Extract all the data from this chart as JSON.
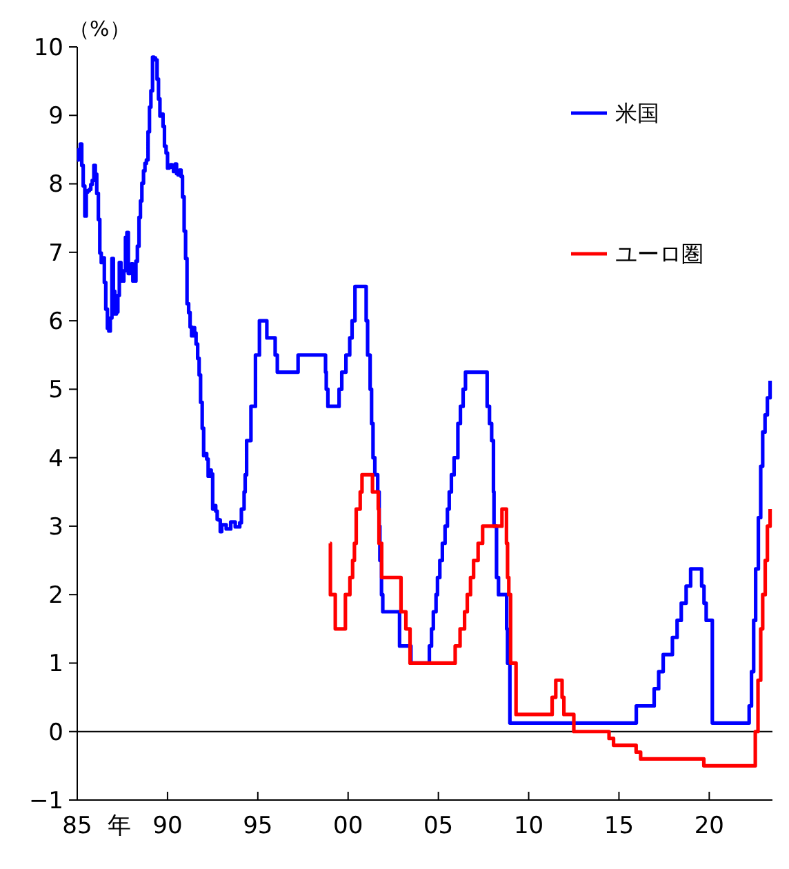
{
  "chart_data": {
    "type": "step",
    "ylabel": "（%）",
    "xlabel": "年",
    "xlim": [
      1985,
      2023.5
    ],
    "xticks": [
      {
        "value": 1985,
        "label": "85"
      },
      {
        "value": 1990,
        "label": "90"
      },
      {
        "value": 1995,
        "label": "95"
      },
      {
        "value": 2000,
        "label": "00"
      },
      {
        "value": 2005,
        "label": "05"
      },
      {
        "value": 2010,
        "label": "10"
      },
      {
        "value": 2015,
        "label": "15"
      },
      {
        "value": 2020,
        "label": "20"
      }
    ],
    "ylim": [
      -1,
      10
    ],
    "yticks": [
      -1,
      0,
      1,
      2,
      3,
      4,
      5,
      6,
      7,
      8,
      9,
      10
    ],
    "grid": false,
    "legend": "top right",
    "ref_lines": [
      {
        "axis": "y",
        "value": 0,
        "color": "#000000"
      }
    ],
    "series": [
      {
        "name": "米国",
        "color": "#0000ff",
        "x": [
          1985,
          1985.08,
          1985.17,
          1985.25,
          1985.33,
          1985.42,
          1985.5,
          1985.58,
          1985.67,
          1985.75,
          1985.83,
          1985.92,
          1986,
          1986.08,
          1986.17,
          1986.25,
          1986.33,
          1986.42,
          1986.5,
          1986.58,
          1986.67,
          1986.75,
          1986.83,
          1986.92,
          1987,
          1987.08,
          1987.17,
          1987.25,
          1987.33,
          1987.42,
          1987.5,
          1987.58,
          1987.67,
          1987.75,
          1987.83,
          1987.92,
          1988,
          1988.08,
          1988.17,
          1988.25,
          1988.33,
          1988.42,
          1988.5,
          1988.58,
          1988.67,
          1988.75,
          1988.83,
          1988.92,
          1989,
          1989.08,
          1989.17,
          1989.25,
          1989.33,
          1989.42,
          1989.5,
          1989.58,
          1989.67,
          1989.75,
          1989.83,
          1989.92,
          1990,
          1990.08,
          1990.17,
          1990.25,
          1990.33,
          1990.42,
          1990.5,
          1990.58,
          1990.67,
          1990.75,
          1990.83,
          1990.92,
          1991,
          1991.08,
          1991.17,
          1991.25,
          1991.33,
          1991.42,
          1991.5,
          1991.58,
          1991.67,
          1991.75,
          1991.83,
          1991.92,
          1992,
          1992.08,
          1992.17,
          1992.25,
          1992.33,
          1992.42,
          1992.5,
          1992.58,
          1992.67,
          1992.75,
          1992.83,
          1992.92,
          1993,
          1993.25,
          1993.5,
          1993.75,
          1994,
          1994.09,
          1994.24,
          1994.3,
          1994.38,
          1994.62,
          1994.87,
          1995.09,
          1995.5,
          1995.96,
          1996.08,
          1997.23,
          1998.75,
          1998.79,
          1998.88,
          1999.5,
          1999.65,
          1999.88,
          2000.09,
          2000.22,
          2000.38,
          2001,
          2001.08,
          2001.22,
          2001.3,
          2001.38,
          2001.48,
          2001.64,
          2001.72,
          2001.76,
          2001.85,
          2001.92,
          2002.85,
          2003.48,
          2004.5,
          2004.62,
          2004.72,
          2004.87,
          2004.95,
          2005.08,
          2005.22,
          2005.37,
          2005.5,
          2005.6,
          2005.72,
          2005.87,
          2006.08,
          2006.22,
          2006.37,
          2006.5,
          2007.7,
          2007.83,
          2007.95,
          2008.05,
          2008.08,
          2008.22,
          2008.33,
          2008.78,
          2008.83,
          2008.96,
          2015.96,
          2016.95,
          2017.2,
          2017.45,
          2017.96,
          2018.22,
          2018.45,
          2018.72,
          2018.97,
          2019.58,
          2019.71,
          2019.83,
          2020.17,
          2022.21,
          2022.34,
          2022.46,
          2022.57,
          2022.72,
          2022.85,
          2022.96,
          2023.09,
          2023.22,
          2023.37
        ],
        "values": [
          8.35,
          8.5,
          8.58,
          8.27,
          7.97,
          7.53,
          7.88,
          7.9,
          7.92,
          7.99,
          8.05,
          8.27,
          8.14,
          7.86,
          7.48,
          6.99,
          6.85,
          6.92,
          6.56,
          6.17,
          5.89,
          5.85,
          6.04,
          6.91,
          6.43,
          6.1,
          6.13,
          6.37,
          6.85,
          6.73,
          6.58,
          6.73,
          7.22,
          7.29,
          6.69,
          6.77,
          6.83,
          6.58,
          6.58,
          6.87,
          7.09,
          7.51,
          7.75,
          8.01,
          8.19,
          8.3,
          8.35,
          8.76,
          9.12,
          9.36,
          9.85,
          9.84,
          9.81,
          9.53,
          9.24,
          8.99,
          9.02,
          8.84,
          8.55,
          8.45,
          8.23,
          8.24,
          8.28,
          8.26,
          8.18,
          8.29,
          8.15,
          8.13,
          8.2,
          8.11,
          7.81,
          7.31,
          6.91,
          6.25,
          6.12,
          5.91,
          5.78,
          5.9,
          5.82,
          5.66,
          5.45,
          5.21,
          4.81,
          4.43,
          4.03,
          4.06,
          3.98,
          3.73,
          3.82,
          3.76,
          3.25,
          3.3,
          3.22,
          3.1,
          3.09,
          2.92,
          3.02,
          2.96,
          3.06,
          2.99,
          3.05,
          3.25,
          3.5,
          3.75,
          4.25,
          4.75,
          5.5,
          6,
          5.75,
          5.5,
          5.25,
          5.5,
          5.25,
          5,
          4.75,
          5,
          5.25,
          5.5,
          5.75,
          6,
          6.5,
          6,
          5.5,
          5,
          4.5,
          4,
          3.75,
          3.5,
          3,
          2.5,
          2,
          1.75,
          1.25,
          1,
          1.25,
          1.5,
          1.75,
          2,
          2.25,
          2.5,
          2.75,
          3,
          3.25,
          3.5,
          3.75,
          4,
          4.5,
          4.75,
          5,
          5.25,
          4.75,
          4.5,
          4.25,
          3.5,
          3,
          2.25,
          2,
          1.5,
          1,
          0.125,
          0.375,
          0.625,
          0.875,
          1.125,
          1.375,
          1.625,
          1.875,
          2.125,
          2.375,
          2.125,
          1.875,
          1.625,
          0.125,
          0.375,
          0.875,
          1.625,
          2.375,
          3.125,
          3.875,
          4.375,
          4.625,
          4.875,
          5.125
        ]
      },
      {
        "name": "ユーロ圏",
        "color": "#ff0000",
        "x": [
          1999,
          1999.02,
          1999.29,
          1999.85,
          2000.1,
          2000.25,
          2000.35,
          2000.45,
          2000.67,
          2000.77,
          2001.35,
          2001.67,
          2001.71,
          2001.86,
          2002.93,
          2003.2,
          2003.43,
          2005.93,
          2006.2,
          2006.45,
          2006.6,
          2006.78,
          2006.95,
          2007.2,
          2007.45,
          2008.52,
          2008.77,
          2008.83,
          2008.9,
          2009,
          2009.3,
          2011.3,
          2011.5,
          2011.85,
          2011.95,
          2012.5,
          2014.45,
          2014.7,
          2015.95,
          2016.2,
          2019.7,
          2022.55,
          2022.7,
          2022.85,
          2022.96,
          2023.1,
          2023.22,
          2023.37
        ],
        "values": [
          2.75,
          2,
          1.5,
          2,
          2.25,
          2.5,
          2.75,
          3.25,
          3.5,
          3.75,
          3.5,
          3.25,
          2.75,
          2.25,
          1.75,
          1.5,
          1,
          1.25,
          1.5,
          1.75,
          2,
          2.25,
          2.5,
          2.75,
          3,
          3.25,
          2.75,
          2.25,
          2,
          1,
          0.25,
          0.5,
          0.75,
          0.5,
          0.25,
          0,
          -0.1,
          -0.2,
          -0.3,
          -0.4,
          -0.5,
          0,
          0.75,
          1.5,
          2,
          2.5,
          3,
          3.25
        ]
      }
    ]
  }
}
